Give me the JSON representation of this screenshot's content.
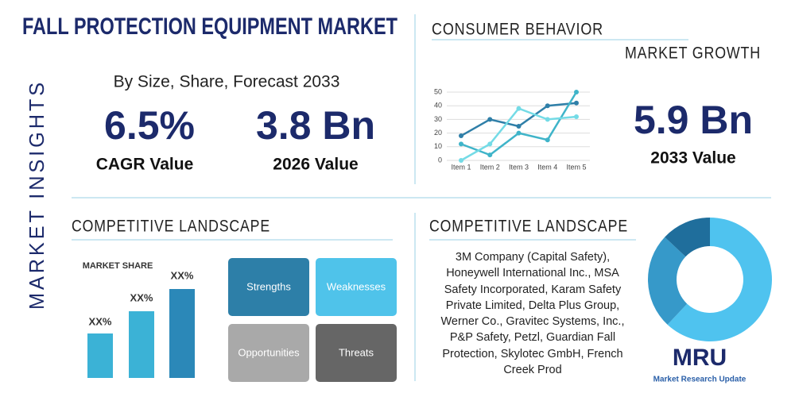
{
  "title": "FALL PROTECTION EQUIPMENT MARKET",
  "side_label": "MARKET INSIGHTS",
  "subtitle": "By Size, Share, Forecast 2033",
  "stats": [
    {
      "value": "6.5%",
      "label": "CAGR Value"
    },
    {
      "value": "3.8 Bn",
      "label": "2026 Value"
    },
    {
      "value": "5.9 Bn",
      "label": "2033 Value"
    }
  ],
  "consumer_behavior": {
    "title": "CONSUMER BEHAVIOR",
    "subtitle": "MARKET GROWTH"
  },
  "competitive_left": {
    "title": "COMPETITIVE LANDSCAPE",
    "market_share_label": "MARKET SHARE",
    "bar_labels": [
      "XX%",
      "XX%",
      "XX%"
    ],
    "swot": [
      "Strengths",
      "Weaknesses",
      "Opportunities",
      "Threats"
    ]
  },
  "competitive_right": {
    "title": "COMPETITIVE LANDSCAPE",
    "companies": "3M Company (Capital Safety), Honeywell International Inc., MSA Safety Incorporated, Karam Safety Private Limited, Delta Plus Group, Werner Co., Gravitec Systems, Inc., P&P Safety, Petzl, Guardian Fall Protection, Skylotec GmbH, French Creek Prod"
  },
  "logo": {
    "mark": "MRU",
    "name": "Market Research Update"
  },
  "chart_data": [
    {
      "type": "line",
      "categories": [
        "Item 1",
        "Item 2",
        "Item 3",
        "Item 4",
        "Item 5"
      ],
      "ylim": [
        0,
        50
      ],
      "yticks": [
        0,
        10,
        20,
        30,
        40,
        50
      ],
      "grid": true,
      "series": [
        {
          "color": "#2f7fa8",
          "values": [
            18,
            30,
            25,
            40,
            42
          ]
        },
        {
          "color": "#3fb4c9",
          "values": [
            12,
            4,
            20,
            15,
            50
          ]
        },
        {
          "color": "#74dbe6",
          "values": [
            0,
            12,
            38,
            30,
            32
          ]
        }
      ]
    },
    {
      "type": "pie",
      "values": [
        62,
        25,
        13
      ],
      "colors": [
        "#4fc3ef",
        "#3699c9",
        "#1f6e9c"
      ]
    }
  ]
}
